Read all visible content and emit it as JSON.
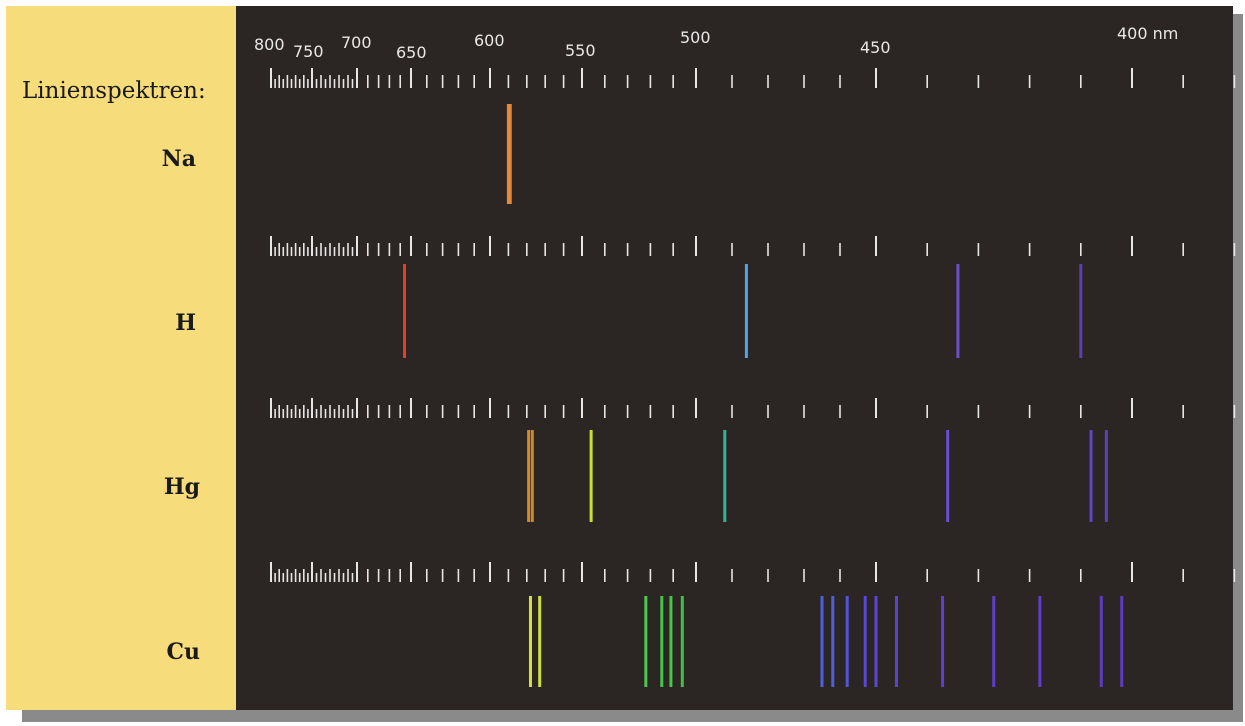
{
  "colors": {
    "panel": "#f6dc7a",
    "background": "#2b2523",
    "scale": "#e6e6e6",
    "shadow": "#8a8a8a"
  },
  "labels": {
    "heading": "Linienspektren:",
    "elements": [
      "Na",
      "H",
      "Hg",
      "Cu"
    ]
  },
  "scale": {
    "numbers": [
      "800",
      "750",
      "700",
      "650",
      "600",
      "550",
      "500",
      "450",
      "400 nm"
    ]
  },
  "chart_data": {
    "type": "line-spectra",
    "title": "Linienspektren:",
    "xlabel": "nm",
    "x_ticks": [
      800,
      750,
      700,
      650,
      600,
      550,
      500,
      450,
      400
    ],
    "spectra": [
      {
        "element": "Na",
        "lines": [
          {
            "nm": 590,
            "color": "#e08a3a"
          },
          {
            "nm": 589,
            "color": "#e08a3a"
          }
        ]
      },
      {
        "element": "H",
        "lines": [
          {
            "nm": 656,
            "color": "#e2402a"
          },
          {
            "nm": 486,
            "color": "#4fa6e8"
          },
          {
            "nm": 434,
            "color": "#6a4fcc"
          },
          {
            "nm": 410,
            "color": "#5b3fb8"
          }
        ]
      },
      {
        "element": "Hg",
        "lines": [
          {
            "nm": 579,
            "color": "#d18a2c"
          },
          {
            "nm": 577,
            "color": "#c98a30"
          },
          {
            "nm": 546,
            "color": "#c8e030"
          },
          {
            "nm": 492,
            "color": "#2fb79a"
          },
          {
            "nm": 436,
            "color": "#6a4fd0"
          },
          {
            "nm": 408,
            "color": "#6045c4"
          },
          {
            "nm": 405,
            "color": "#5a3fc0"
          }
        ]
      },
      {
        "element": "Cu",
        "lines": [
          {
            "nm": 578,
            "color": "#d6e038"
          },
          {
            "nm": 573,
            "color": "#d0df3a"
          },
          {
            "nm": 522,
            "color": "#4cc84e"
          },
          {
            "nm": 515,
            "color": "#46c44a"
          },
          {
            "nm": 511,
            "color": "#44c848"
          },
          {
            "nm": 506,
            "color": "#40c046"
          },
          {
            "nm": 465,
            "color": "#4f5fdc"
          },
          {
            "nm": 462,
            "color": "#4f5fdc"
          },
          {
            "nm": 458,
            "color": "#5156d8"
          },
          {
            "nm": 453,
            "color": "#5848d4"
          },
          {
            "nm": 450,
            "color": "#5848d4"
          },
          {
            "nm": 446,
            "color": "#5a44d0"
          },
          {
            "nm": 437,
            "color": "#5e40cc"
          },
          {
            "nm": 427,
            "color": "#5e3fc8"
          },
          {
            "nm": 418,
            "color": "#603ec6"
          },
          {
            "nm": 406,
            "color": "#5c3cc0"
          },
          {
            "nm": 402,
            "color": "#5c3cc0"
          }
        ]
      }
    ]
  }
}
